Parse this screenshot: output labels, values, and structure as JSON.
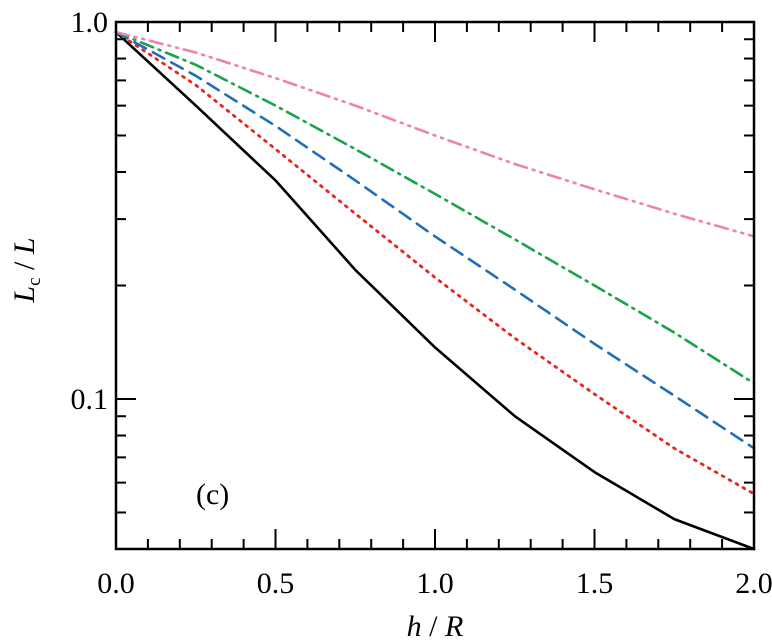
{
  "chart_data": {
    "type": "line",
    "title": "",
    "xlabel": {
      "italic_var": "h",
      "sep": " / ",
      "var2": "R"
    },
    "ylabel": {
      "var": "L",
      "sub": "c",
      "sep": " / ",
      "var2": "L"
    },
    "xscale": "linear",
    "yscale": "log",
    "xlim": [
      0.0,
      2.0
    ],
    "ylim": [
      0.04,
      1.0
    ],
    "x_ticks": [
      "0.0",
      "0.5",
      "1.0",
      "1.5",
      "2.0"
    ],
    "y_ticks": [
      "1.0",
      "0.1"
    ],
    "annotation": "(c)",
    "grid": false,
    "series": [
      {
        "style": "solid",
        "color": "#000000",
        "x": [
          0,
          0.25,
          0.5,
          0.75,
          1.0,
          1.25,
          1.5,
          1.75,
          2.0
        ],
        "y": [
          0.94,
          0.6,
          0.38,
          0.22,
          0.137,
          0.09,
          0.064,
          0.048,
          0.04
        ]
      },
      {
        "style": "dotted",
        "color": "#e8251f",
        "x": [
          0,
          0.25,
          0.5,
          0.75,
          1.0,
          1.25,
          1.5,
          1.75,
          2.0
        ],
        "y": [
          0.94,
          0.68,
          0.46,
          0.31,
          0.21,
          0.145,
          0.103,
          0.074,
          0.056
        ]
      },
      {
        "style": "dashed",
        "color": "#1f6fb8",
        "x": [
          0,
          0.25,
          0.5,
          0.75,
          1.0,
          1.25,
          1.5,
          1.75,
          2.0
        ],
        "y": [
          0.94,
          0.72,
          0.53,
          0.38,
          0.27,
          0.195,
          0.14,
          0.102,
          0.074
        ]
      },
      {
        "style": "dash-dot",
        "color": "#1aa34a",
        "x": [
          0,
          0.25,
          0.5,
          0.75,
          1.0,
          1.25,
          1.5,
          1.75,
          2.0
        ],
        "y": [
          0.94,
          0.77,
          0.6,
          0.46,
          0.35,
          0.265,
          0.2,
          0.15,
          0.11
        ]
      },
      {
        "style": "dash-dot-dot",
        "color": "#ee82b4",
        "x": [
          0,
          0.25,
          0.5,
          0.75,
          1.0,
          1.25,
          1.5,
          1.75,
          2.0
        ],
        "y": [
          0.94,
          0.83,
          0.71,
          0.6,
          0.5,
          0.42,
          0.36,
          0.31,
          0.27
        ]
      }
    ]
  }
}
